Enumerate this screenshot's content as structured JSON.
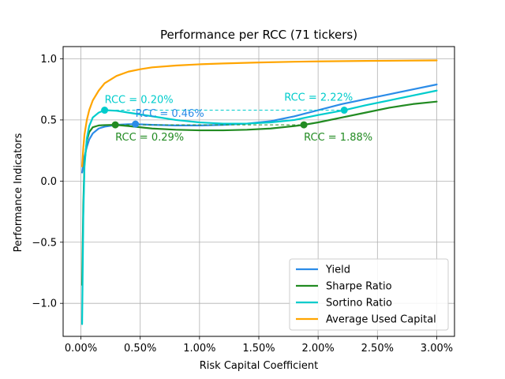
{
  "chart_data": {
    "type": "line",
    "title": "Performance per RCC (71 tickers)",
    "xlabel": "Risk Capital Coefficient",
    "ylabel": "Performance Indicators",
    "xlim": [
      -0.0015,
      0.0315
    ],
    "ylim": [
      -1.27,
      1.1
    ],
    "grid": true,
    "legend_position": "lower-right",
    "x_ticks": [
      {
        "value": 0.0,
        "label": "0.00%"
      },
      {
        "value": 0.005,
        "label": "0.50%"
      },
      {
        "value": 0.01,
        "label": "1.00%"
      },
      {
        "value": 0.015,
        "label": "1.50%"
      },
      {
        "value": 0.02,
        "label": "2.00%"
      },
      {
        "value": 0.025,
        "label": "2.50%"
      },
      {
        "value": 0.03,
        "label": "3.00%"
      }
    ],
    "y_ticks": [
      {
        "value": -1.0,
        "label": "−1.0"
      },
      {
        "value": -0.5,
        "label": "−0.5"
      },
      {
        "value": 0.0,
        "label": "0.0"
      },
      {
        "value": 0.5,
        "label": "0.5"
      },
      {
        "value": 1.0,
        "label": "1.0"
      }
    ],
    "series": [
      {
        "name": "Yield",
        "color": "#2b8ce8",
        "x": [
          0.0001,
          0.0002,
          0.0003,
          0.0005,
          0.0007,
          0.001,
          0.0015,
          0.002,
          0.003,
          0.004,
          0.0046,
          0.006,
          0.008,
          0.01,
          0.012,
          0.014,
          0.016,
          0.018,
          0.02,
          0.022,
          0.024,
          0.026,
          0.028,
          0.03
        ],
        "y": [
          0.07,
          0.14,
          0.2,
          0.28,
          0.34,
          0.39,
          0.43,
          0.445,
          0.46,
          0.465,
          0.466,
          0.46,
          0.455,
          0.455,
          0.46,
          0.47,
          0.49,
          0.53,
          0.58,
          0.63,
          0.67,
          0.71,
          0.75,
          0.79
        ]
      },
      {
        "name": "Sharpe Ratio",
        "color": "#228b22",
        "x": [
          0.0001,
          0.0002,
          0.0003,
          0.0005,
          0.0007,
          0.001,
          0.0015,
          0.002,
          0.0029,
          0.004,
          0.006,
          0.008,
          0.01,
          0.012,
          0.014,
          0.016,
          0.018,
          0.0188,
          0.02,
          0.022,
          0.024,
          0.026,
          0.028,
          0.03
        ],
        "y": [
          -0.85,
          -0.2,
          0.15,
          0.33,
          0.4,
          0.44,
          0.455,
          0.458,
          0.46,
          0.45,
          0.43,
          0.42,
          0.415,
          0.415,
          0.42,
          0.43,
          0.45,
          0.46,
          0.48,
          0.52,
          0.56,
          0.6,
          0.63,
          0.65
        ]
      },
      {
        "name": "Sortino Ratio",
        "color": "#00cccc",
        "x": [
          0.0001,
          0.0002,
          0.0003,
          0.0005,
          0.0007,
          0.001,
          0.0015,
          0.002,
          0.003,
          0.004,
          0.006,
          0.008,
          0.01,
          0.012,
          0.014,
          0.016,
          0.018,
          0.02,
          0.0222,
          0.024,
          0.026,
          0.028,
          0.03
        ],
        "y": [
          -1.17,
          -0.3,
          0.12,
          0.35,
          0.45,
          0.52,
          0.56,
          0.58,
          0.575,
          0.56,
          0.53,
          0.5,
          0.48,
          0.47,
          0.47,
          0.48,
          0.5,
          0.54,
          0.58,
          0.62,
          0.66,
          0.7,
          0.74
        ]
      },
      {
        "name": "Average Used Capital",
        "color": "#ffa500",
        "x": [
          0.0001,
          0.0002,
          0.0003,
          0.0005,
          0.0007,
          0.001,
          0.0015,
          0.002,
          0.003,
          0.004,
          0.005,
          0.006,
          0.008,
          0.01,
          0.012,
          0.015,
          0.018,
          0.02,
          0.024,
          0.027,
          0.03
        ],
        "y": [
          0.12,
          0.27,
          0.38,
          0.5,
          0.58,
          0.66,
          0.74,
          0.8,
          0.86,
          0.895,
          0.915,
          0.93,
          0.945,
          0.955,
          0.962,
          0.97,
          0.976,
          0.979,
          0.983,
          0.985,
          0.987
        ]
      }
    ],
    "annotations": [
      {
        "text": "RCC = 0.20%",
        "color": "#00cccc",
        "x": 0.002,
        "y": 0.58,
        "label_anchor": "above"
      },
      {
        "text": "RCC = 0.46%",
        "color": "#2b8ce8",
        "x": 0.0046,
        "y": 0.466,
        "label_anchor": "above"
      },
      {
        "text": "RCC = 0.29%",
        "color": "#228b22",
        "x": 0.0029,
        "y": 0.46,
        "label_anchor": "below"
      },
      {
        "text": "RCC = 2.22%",
        "color": "#00cccc",
        "x": 0.0222,
        "y": 0.58,
        "label_anchor": "above-left"
      },
      {
        "text": "RCC = 1.88%",
        "color": "#228b22",
        "x": 0.0188,
        "y": 0.46,
        "label_anchor": "below"
      }
    ],
    "reference_lines": [
      {
        "color": "#00cccc",
        "x1": 0.002,
        "x2": 0.0222,
        "y": 0.58,
        "style": "dashed"
      },
      {
        "color": "#228b22",
        "x1": 0.0029,
        "x2": 0.0188,
        "y": 0.46,
        "style": "dashed"
      }
    ]
  }
}
